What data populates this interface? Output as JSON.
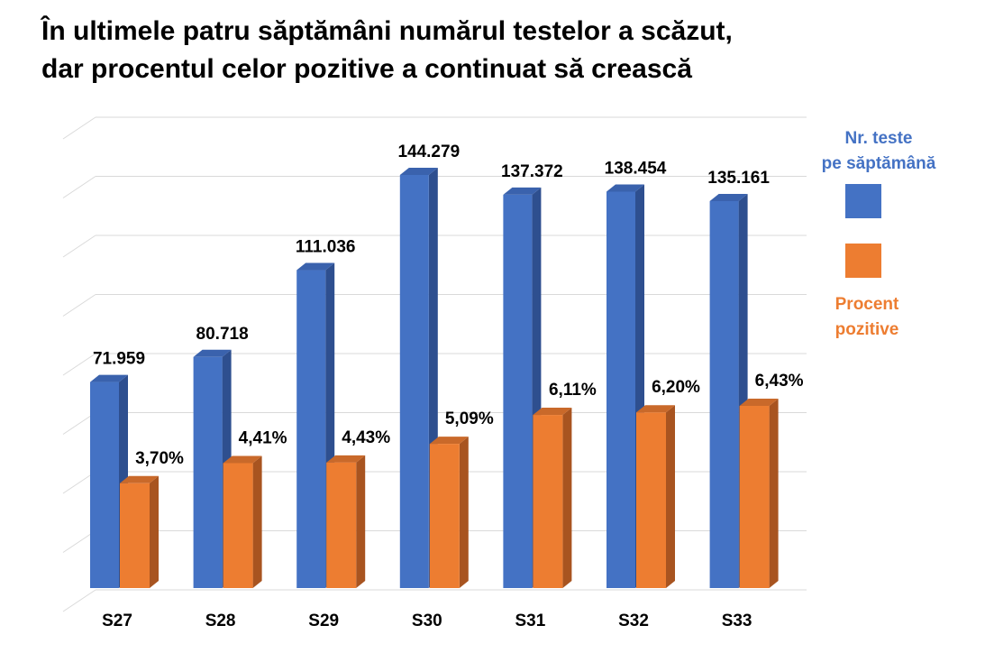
{
  "title": {
    "line1": "În ultimele patru săptămâni numărul testelor a scăzut,",
    "line2": "dar procentul celor pozitive a continuat să crească"
  },
  "colors": {
    "tests": "#4472C4",
    "tests_side": "#2E4F8F",
    "tests_top": "#3A62AD",
    "percent": "#ED7D31",
    "percent_side": "#A85420",
    "percent_top": "#C9692A",
    "grid": "#D9D9D9"
  },
  "legend": {
    "tests_line1": "Nr. teste",
    "tests_line2": "pe săptămână",
    "percent_line1": "Procent",
    "percent_line2": "pozitive"
  },
  "chart_data": {
    "type": "bar",
    "categories": [
      "S27",
      "S28",
      "S29",
      "S30",
      "S31",
      "S32",
      "S33"
    ],
    "series": [
      {
        "name": "Nr. teste pe săptămână",
        "values": [
          71959,
          80718,
          111036,
          144279,
          137372,
          138454,
          135161
        ],
        "labels": [
          "71.959",
          "80.718",
          "111.036",
          "144.279",
          "137.372",
          "138.454",
          "135.161"
        ]
      },
      {
        "name": "Procent pozitive",
        "values": [
          3.7,
          4.41,
          4.43,
          5.09,
          6.11,
          6.2,
          6.43
        ],
        "labels": [
          "3,70%",
          "4,41%",
          "4,43%",
          "5,09%",
          "6,11%",
          "6,20%",
          "6,43%"
        ]
      }
    ],
    "grid": true,
    "legend_position": "right"
  }
}
